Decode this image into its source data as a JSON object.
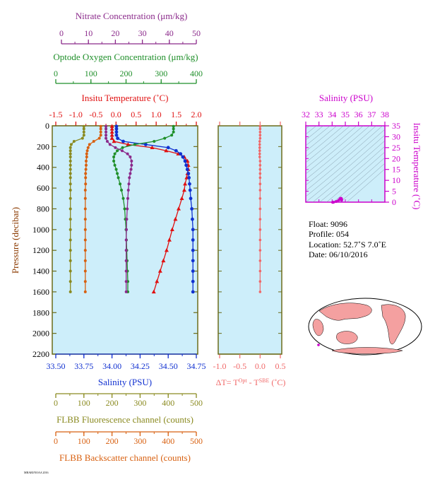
{
  "colors": {
    "nitrate": "#8b2a8b",
    "oxygen": "#1f8f2a",
    "temperature": "#e01010",
    "salinity": "#1030d0",
    "fluorescence": "#8a8a20",
    "backscatter": "#d86010",
    "delta_t": "#f06868",
    "ts_axis": "#cc00cc",
    "panel_bg": "#cdeefa",
    "frame": "#6b6b1a"
  },
  "axes": {
    "nitrate": {
      "label": "Nitrate Concentration (μm/kg)",
      "ticks": [
        "0",
        "10",
        "20",
        "30",
        "40",
        "50"
      ]
    },
    "oxygen": {
      "label": "Optode Oxygen Concentration (μm/kg)",
      "ticks": [
        "0",
        "100",
        "200",
        "300",
        "400"
      ]
    },
    "temperature": {
      "label": "Insitu Temperature (˚C)",
      "ticks": [
        "-1.5",
        "-1.0",
        "-0.5",
        "0.0",
        "0.5",
        "1.0",
        "1.5",
        "2.0"
      ]
    },
    "pressure": {
      "label": "Pressure (decibar)",
      "ticks": [
        "0",
        "200",
        "400",
        "600",
        "800",
        "1000",
        "1200",
        "1400",
        "1600",
        "1800",
        "2000",
        "2200"
      ]
    },
    "salinity": {
      "label": "Salinity (PSU)",
      "ticks": [
        "33.50",
        "33.75",
        "34.00",
        "34.25",
        "34.50",
        "34.75"
      ]
    },
    "fluorescence": {
      "label": "FLBB Fluorescence channel (counts)",
      "ticks": [
        "0",
        "100",
        "200",
        "300",
        "400",
        "500"
      ]
    },
    "backscatter": {
      "label": "FLBB Backscatter channel (counts)",
      "ticks": [
        "0",
        "100",
        "200",
        "300",
        "400",
        "500"
      ]
    },
    "delta_t": {
      "label_main": "ΔT= T",
      "label_sup1": "Opt",
      "label_mid": " - T",
      "label_sup2": "SBE",
      "label_tail": " (˚C)",
      "ticks": [
        "-1.0",
        "-0.5",
        "0.0",
        "0.5"
      ]
    },
    "ts_salinity": {
      "label": "Salinity (PSU)",
      "ticks": [
        "32",
        "33",
        "34",
        "35",
        "36",
        "37",
        "38"
      ]
    },
    "ts_temperature": {
      "label": "Insitu Temperature (˚C)",
      "ticks": [
        "0",
        "5",
        "10",
        "15",
        "20",
        "25",
        "30",
        "35"
      ]
    }
  },
  "info": {
    "float": "Float:  9096",
    "profile": "Profile:  054",
    "location": "Location:  52.7˚S   7.0˚E",
    "date": "Date:  06/10/2016"
  },
  "footer": "MBARI/NOAA 2016",
  "chart_data": {
    "type": "line",
    "y_axis": "pressure",
    "ylim": [
      2200,
      0
    ],
    "pressure": [
      5,
      30,
      60,
      90,
      120,
      150,
      180,
      210,
      240,
      270,
      300,
      340,
      380,
      420,
      460,
      500,
      560,
      620,
      700,
      800,
      900,
      1000,
      1100,
      1200,
      1300,
      1400,
      1500,
      1600
    ],
    "series": [
      {
        "name": "Insitu Temperature",
        "axis": "temperature",
        "xlim": [
          -1.5,
          2.0
        ],
        "values": [
          -0.1,
          -0.1,
          -0.1,
          -0.1,
          -0.1,
          -0.05,
          0.3,
          0.9,
          1.25,
          1.55,
          1.7,
          1.78,
          1.8,
          1.8,
          1.78,
          1.76,
          1.72,
          1.7,
          1.64,
          1.56,
          1.48,
          1.4,
          1.33,
          1.26,
          1.18,
          1.1,
          1.02,
          0.94
        ]
      },
      {
        "name": "Salinity",
        "axis": "salinity",
        "xlim": [
          33.5,
          34.75
        ],
        "values": [
          34.04,
          34.04,
          34.04,
          34.04,
          34.05,
          34.1,
          34.3,
          34.5,
          34.57,
          34.61,
          34.63,
          34.65,
          34.66,
          34.67,
          34.68,
          34.685,
          34.69,
          34.695,
          34.7,
          34.71,
          34.715,
          34.72,
          34.72,
          34.72,
          34.72,
          34.72,
          34.72,
          34.72
        ]
      },
      {
        "name": "Optode Oxygen Concentration",
        "axis": "oxygen",
        "xlim": [
          0,
          400
        ],
        "values": [
          335,
          335,
          335,
          330,
          310,
          280,
          225,
          190,
          175,
          168,
          165,
          165,
          168,
          172,
          175,
          178,
          183,
          187,
          192,
          196,
          198,
          200,
          201,
          202,
          203,
          204,
          205,
          205
        ]
      },
      {
        "name": "Nitrate Concentration",
        "axis": "nitrate",
        "xlim": [
          0,
          50
        ],
        "values": [
          16.5,
          16.5,
          16.5,
          16.5,
          16.5,
          17,
          18,
          20,
          22.5,
          24.5,
          25.5,
          26,
          26,
          25.8,
          25.5,
          25.2,
          25,
          24.8,
          24.6,
          24.4,
          24.2,
          24.1,
          24,
          24,
          24,
          24,
          24,
          24
        ]
      },
      {
        "name": "FLBB Fluorescence channel",
        "axis": "fluorescence",
        "xlim": [
          0,
          500
        ],
        "values": [
          100,
          100,
          100,
          100,
          95,
          65,
          55,
          52,
          52,
          52,
          52,
          52,
          52,
          52,
          52,
          52,
          52,
          52,
          52,
          52,
          52,
          52,
          52,
          52,
          52,
          52,
          52,
          52
        ]
      },
      {
        "name": "FLBB Backscatter channel",
        "axis": "backscatter",
        "xlim": [
          0,
          500
        ],
        "values": [
          160,
          160,
          160,
          160,
          155,
          135,
          120,
          115,
          112,
          110,
          110,
          108,
          108,
          107,
          106,
          106,
          106,
          105,
          105,
          105,
          105,
          105,
          105,
          105,
          105,
          105,
          105,
          105
        ]
      },
      {
        "name": "ΔT",
        "axis": "delta_t",
        "xlim": [
          -1.0,
          0.5
        ],
        "values": [
          0.0,
          0.0,
          0.0,
          0.0,
          0.0,
          -0.01,
          -0.01,
          -0.01,
          -0.01,
          -0.01,
          -0.01,
          0.0,
          0.0,
          0.0,
          0.0,
          0.0,
          0.0,
          0.0,
          0.0,
          0.0,
          0.0,
          0.0,
          0.0,
          0.0,
          0.0,
          0.0,
          0.0,
          0.0
        ]
      }
    ],
    "ts_diagram": {
      "xlim": [
        32,
        38
      ],
      "ylim": [
        0,
        35
      ],
      "points": [
        [
          34.04,
          -0.1
        ],
        [
          34.1,
          -0.05
        ],
        [
          34.3,
          0.3
        ],
        [
          34.5,
          0.9
        ],
        [
          34.6,
          1.6
        ],
        [
          34.66,
          1.8
        ],
        [
          34.69,
          1.7
        ],
        [
          34.71,
          1.5
        ],
        [
          34.72,
          1.2
        ],
        [
          34.72,
          0.9
        ]
      ]
    }
  }
}
